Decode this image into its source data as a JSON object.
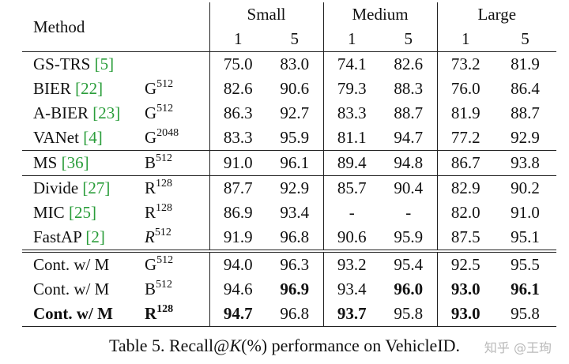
{
  "header": {
    "method": "Method",
    "groups": [
      "Small",
      "Medium",
      "Large"
    ],
    "sub": [
      "1",
      "5",
      "1",
      "5",
      "1",
      "5"
    ]
  },
  "rows": [
    {
      "method": "GS-TRS",
      "ref": "5",
      "emb_letter": "",
      "emb_dim": "",
      "vals": [
        "75.0",
        "83.0",
        "74.1",
        "82.6",
        "73.2",
        "81.9"
      ]
    },
    {
      "method": "BIER",
      "ref": "22",
      "emb_letter": "G",
      "emb_dim": "512",
      "vals": [
        "82.6",
        "90.6",
        "79.3",
        "88.3",
        "76.0",
        "86.4"
      ]
    },
    {
      "method": "A-BIER",
      "ref": "23",
      "emb_letter": "G",
      "emb_dim": "512",
      "vals": [
        "86.3",
        "92.7",
        "83.3",
        "88.7",
        "81.9",
        "88.7"
      ]
    },
    {
      "method": "VANet",
      "ref": "4",
      "emb_letter": "G",
      "emb_dim": "2048",
      "vals": [
        "83.3",
        "95.9",
        "81.1",
        "94.7",
        "77.2",
        "92.9"
      ]
    },
    {
      "method": "MS",
      "ref": "36",
      "emb_letter": "B",
      "emb_dim": "512",
      "vals": [
        "91.0",
        "96.1",
        "89.4",
        "94.8",
        "86.7",
        "93.8"
      ]
    },
    {
      "method": "Divide",
      "ref": "27",
      "emb_letter": "R",
      "emb_dim": "128",
      "vals": [
        "87.7",
        "92.9",
        "85.7",
        "90.4",
        "82.9",
        "90.2"
      ]
    },
    {
      "method": "MIC",
      "ref": "25",
      "emb_letter": "R",
      "emb_dim": "128",
      "vals": [
        "86.9",
        "93.4",
        "-",
        "-",
        "82.0",
        "91.0"
      ]
    },
    {
      "method": "FastAP",
      "ref": "2",
      "emb_letter": "R",
      "emb_dim": "512",
      "vals": [
        "91.9",
        "96.8",
        "90.6",
        "95.9",
        "87.5",
        "95.1"
      ]
    },
    {
      "method": "Cont. w/ M",
      "ref": "",
      "emb_letter": "G",
      "emb_dim": "512",
      "vals": [
        "94.0",
        "96.3",
        "93.2",
        "95.4",
        "92.5",
        "95.5"
      ]
    },
    {
      "method": "Cont. w/ M",
      "ref": "",
      "emb_letter": "B",
      "emb_dim": "512",
      "vals": [
        "94.6",
        "96.9",
        "93.4",
        "96.0",
        "93.0",
        "96.1"
      ]
    },
    {
      "method": "Cont. w/ M",
      "ref": "",
      "emb_letter": "R",
      "emb_dim": "128",
      "vals": [
        "94.7",
        "96.8",
        "93.7",
        "95.8",
        "93.0",
        "95.8"
      ]
    }
  ],
  "caption": {
    "prefix": "Table 5. Recall@",
    "k": "K",
    "suffix": "(%) performance on VehicleID."
  },
  "watermark": "知乎 @王珣"
}
